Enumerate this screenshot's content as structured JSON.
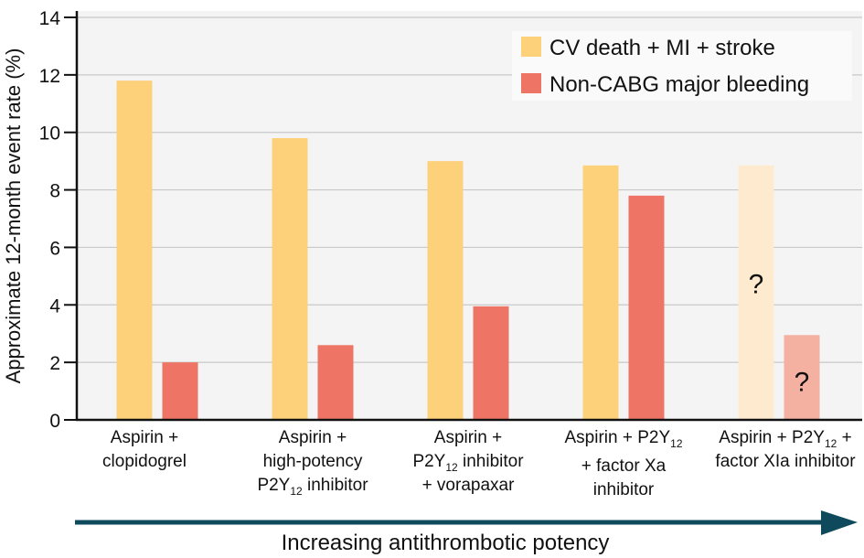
{
  "chart_data": {
    "type": "bar",
    "title": "",
    "xlabel": "Increasing antithrombotic potency",
    "ylabel": "Approximate 12-month event rate (%)",
    "ylim": [
      0,
      14
    ],
    "yticks": [
      0,
      2,
      4,
      6,
      8,
      10,
      12,
      14
    ],
    "grid": true,
    "legend_position": "top-right",
    "categories": [
      [
        "Aspirin +",
        "clopidogrel"
      ],
      [
        "Aspirin +",
        "high-potency",
        "P2Y|12| inhibitor"
      ],
      [
        "Aspirin +",
        "P2Y|12| inhibitor",
        "+ vorapaxar"
      ],
      [
        "Aspirin + P2Y|12|",
        "+ factor Xa",
        "inhibitor"
      ],
      [
        "Aspirin + P2Y|12| +",
        "factor XIa inhibitor"
      ]
    ],
    "category_names": [
      "Aspirin + clopidogrel",
      "Aspirin + high-potency P2Y12 inhibitor",
      "Aspirin + P2Y12 inhibitor + vorapaxar",
      "Aspirin + P2Y12 + factor Xa inhibitor",
      "Aspirin + P2Y12 + factor XIa inhibitor"
    ],
    "series": [
      {
        "name": "CV death + MI + stroke",
        "color": "#FDD07A",
        "uncertain_color": "#FEEBCF",
        "values": [
          11.8,
          9.8,
          9.0,
          8.85,
          8.85
        ],
        "uncertain": [
          false,
          false,
          false,
          false,
          true
        ]
      },
      {
        "name": "Non-CABG major bleeding",
        "color": "#EE7565",
        "uncertain_color": "#F4B1A2",
        "values": [
          2.0,
          2.6,
          3.95,
          7.8,
          2.95
        ],
        "uncertain": [
          false,
          false,
          false,
          false,
          true
        ]
      }
    ],
    "annotations": [
      "?",
      "?"
    ],
    "arrow_color": "#0E4A5C"
  }
}
